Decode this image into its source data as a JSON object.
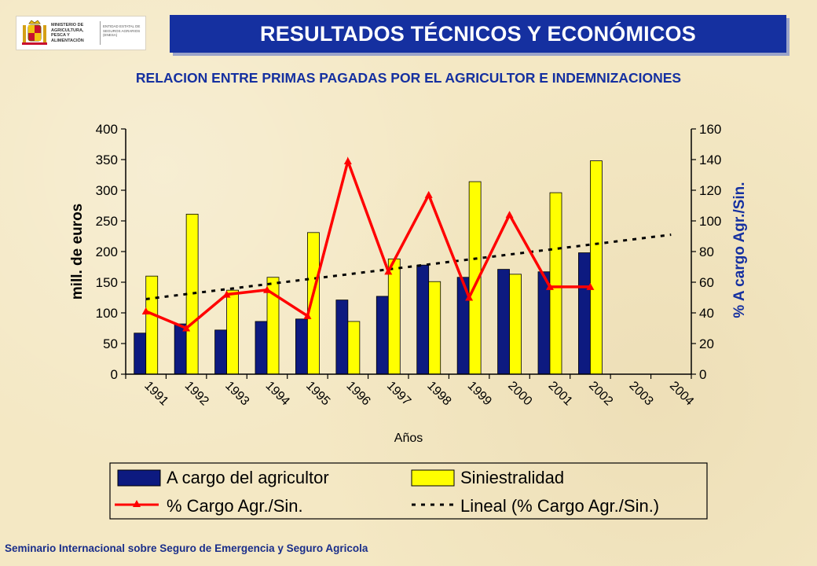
{
  "header": {
    "logo_ministry_text": "MINISTERIO DE AGRICULTURA, PESCA Y ALIMENTACIÓN",
    "logo_entity_text": "ENTIDAD ESTATAL DE SEGUROS AGRARIOS (ENESA)",
    "title": "RESULTADOS TÉCNICOS Y ECONÓMICOS",
    "subtitle": "RELACION ENTRE PRIMAS PAGADAS POR EL AGRICULTOR E INDEMNIZACIONES"
  },
  "footer": {
    "text": "Seminario Internacional sobre Seguro de Emergencia y Seguro Agricola"
  },
  "colors": {
    "bar_primary": "#0d1a80",
    "bar_secondary": "#ffff00",
    "line": "#ff0000",
    "trend": "#000000",
    "accent_blue": "#1530a0"
  },
  "chart_data": {
    "type": "bar",
    "categories": [
      "1991",
      "1992",
      "1993",
      "1994",
      "1995",
      "1996",
      "1997",
      "1998",
      "1999",
      "2000",
      "2001",
      "2002",
      "2003",
      "2004"
    ],
    "xlabel": "Años",
    "ylabel": "mill. de euros",
    "y2label": "% A cargo Agr./Sin.",
    "ylim": [
      0,
      400
    ],
    "y2lim": [
      0,
      160
    ],
    "yticks": [
      0,
      50,
      100,
      150,
      200,
      250,
      300,
      350,
      400
    ],
    "y2ticks": [
      0,
      20,
      40,
      60,
      80,
      100,
      120,
      140,
      160
    ],
    "grid": false,
    "legend_position": "bottom",
    "series": [
      {
        "name": "A cargo del agricultor",
        "kind": "bar",
        "axis": "left",
        "values": [
          67,
          82,
          72,
          86,
          90,
          121,
          127,
          178,
          158,
          171,
          167,
          198,
          null,
          null
        ]
      },
      {
        "name": "Siniestralidad",
        "kind": "bar",
        "axis": "left",
        "values": [
          160,
          261,
          137,
          158,
          231,
          86,
          188,
          151,
          314,
          163,
          296,
          348,
          null,
          null
        ]
      },
      {
        "name": "% Cargo Agr./Sin.",
        "kind": "line",
        "axis": "right",
        "values": [
          41,
          30,
          52,
          55,
          38,
          139,
          67,
          117,
          50,
          104,
          57,
          57,
          null,
          null
        ]
      },
      {
        "name": "Lineal (% Cargo Agr./Sin.)",
        "kind": "trendline",
        "axis": "right",
        "values": [
          49,
          52,
          55,
          58,
          62,
          65,
          68,
          71,
          75,
          78,
          81,
          84,
          88,
          91
        ]
      }
    ]
  }
}
